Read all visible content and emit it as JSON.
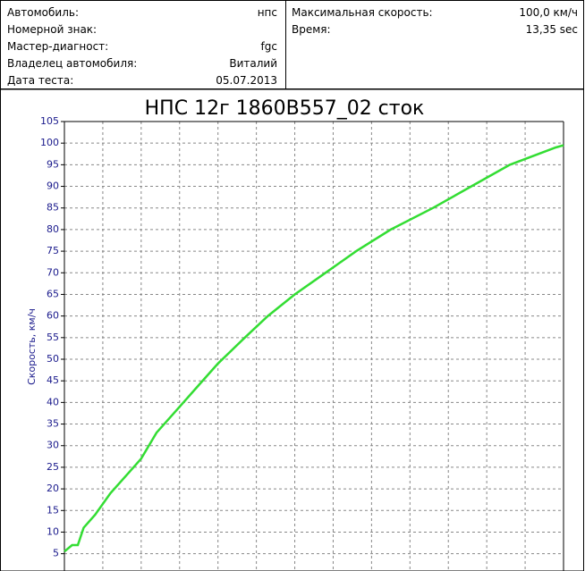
{
  "header": {
    "left": [
      {
        "label": "Автомобиль:",
        "value": "нпс"
      },
      {
        "label": "Номерной знак:"
      },
      {
        "label": "Мастер-диагност:",
        "value": "fgc"
      },
      {
        "label": "Владелец автомобиля:",
        "value": "Виталий"
      },
      {
        "label": "Дата теста:",
        "value": "05.07.2013"
      }
    ],
    "right": [
      {
        "label": "Максимальная скорость:",
        "value": "100,0 км/ч"
      },
      {
        "label": "Время:",
        "value": "13,35 sec"
      }
    ]
  },
  "chart_data": {
    "type": "line",
    "title": "НПС 12г 1860В557_02 сток",
    "y_label": "Скорость, км/ч",
    "x": [
      0,
      0.2,
      0.35,
      0.5,
      0.8,
      1.2,
      1.8,
      2.0,
      2.4,
      3,
      3.5,
      4,
      4.7,
      5.3,
      6,
      6.8,
      7.6,
      8.5,
      9.6,
      10.6,
      11.6,
      12.8,
      13
    ],
    "values": [
      5.5,
      7,
      7,
      11,
      14,
      19,
      25,
      27,
      33,
      39,
      44,
      49,
      55,
      60,
      65,
      70,
      75,
      80,
      85,
      90,
      95,
      99,
      99.5
    ],
    "color": "#33dd33",
    "xlim": [
      0,
      13
    ],
    "ylim": [
      1,
      105
    ],
    "yticks": [
      5,
      10,
      15,
      20,
      25,
      30,
      35,
      40,
      45,
      50,
      55,
      60,
      65,
      70,
      75,
      80,
      85,
      90,
      95,
      100,
      105
    ],
    "grid": true
  }
}
